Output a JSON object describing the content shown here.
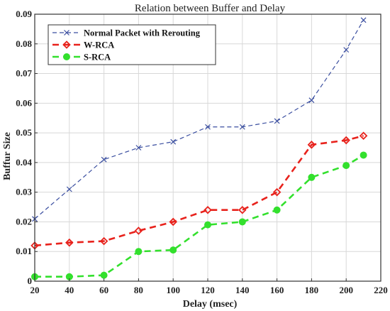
{
  "chart_data": {
    "type": "line",
    "title": "Relation between Buffer and Delay",
    "xlabel": "Delay (msec)",
    "ylabel": "Buffur Size",
    "xlim": [
      20,
      220
    ],
    "ylim": [
      0,
      0.09
    ],
    "xticks": [
      "20",
      "40",
      "60",
      "80",
      "100",
      "120",
      "140",
      "160",
      "180",
      "200",
      "220"
    ],
    "yticks": [
      "0",
      "0.01",
      "0.02",
      "0.03",
      "0.04",
      "0.05",
      "0.06",
      "0.07",
      "0.08",
      "0.09"
    ],
    "grid": true,
    "legend_position": "top-left",
    "x": [
      20,
      40,
      60,
      80,
      100,
      120,
      140,
      160,
      180,
      200,
      210
    ],
    "series": [
      {
        "name": "Normal Packet with Rerouting",
        "color": "#3b4fa0",
        "marker": "x",
        "values": [
          0.021,
          0.031,
          0.041,
          0.045,
          0.047,
          0.052,
          0.052,
          0.054,
          0.061,
          0.078,
          0.088
        ]
      },
      {
        "name": "W-RCA",
        "color": "#e8221c",
        "marker": "diamond",
        "values": [
          0.012,
          0.013,
          0.0135,
          0.017,
          0.02,
          0.024,
          0.024,
          0.03,
          0.046,
          0.0475,
          0.049
        ]
      },
      {
        "name": "S-RCA",
        "color": "#33e02d",
        "marker": "circle",
        "values": [
          0.0015,
          0.0015,
          0.002,
          0.01,
          0.0105,
          0.019,
          0.02,
          0.024,
          0.035,
          0.039,
          0.0425
        ]
      }
    ]
  }
}
